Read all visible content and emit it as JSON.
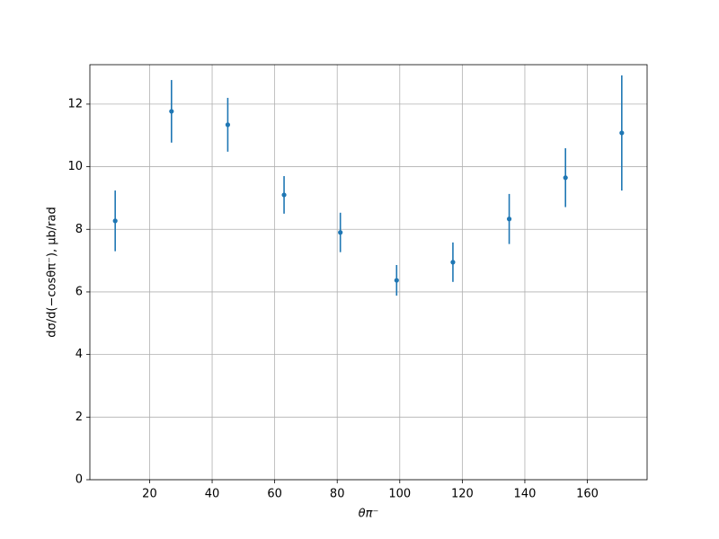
{
  "chart_data": {
    "type": "errorbar",
    "x_label": "θπ⁻",
    "y_label": "dσ/d(−cosθπ⁻), μb/rad",
    "x": [
      9,
      27,
      45,
      63,
      81,
      99,
      117,
      135,
      153,
      171
    ],
    "values": [
      8.27,
      11.77,
      11.34,
      9.1,
      7.9,
      6.37,
      6.95,
      8.33,
      9.65,
      11.08
    ],
    "errors": [
      0.97,
      1.0,
      0.86,
      0.6,
      0.63,
      0.49,
      0.63,
      0.8,
      0.94,
      1.84
    ],
    "color": "#1f77b4",
    "xlim": [
      0.9,
      179.1
    ],
    "xticks": [
      20,
      40,
      60,
      80,
      100,
      120,
      140,
      160
    ],
    "ylim": [
      0,
      13.26
    ],
    "yticks": [
      0,
      2,
      4,
      6,
      8,
      10,
      12
    ],
    "grid": true
  }
}
